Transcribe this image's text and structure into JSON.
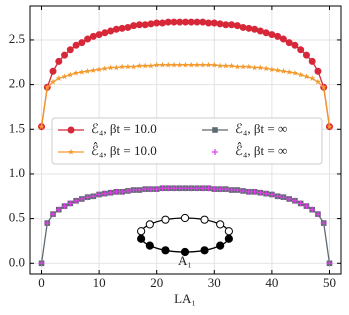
{
  "chart_data": {
    "type": "line",
    "xlabel": "LA₁",
    "annotation": "A₁",
    "x": [
      0,
      1,
      2,
      3,
      4,
      5,
      6,
      7,
      8,
      9,
      10,
      11,
      12,
      13,
      14,
      15,
      16,
      17,
      18,
      19,
      20,
      21,
      22,
      23,
      24,
      25,
      26,
      27,
      28,
      29,
      30,
      31,
      32,
      33,
      34,
      35,
      36,
      37,
      38,
      39,
      40,
      41,
      42,
      43,
      44,
      45,
      46,
      47,
      48,
      49,
      50
    ],
    "series": [
      {
        "name": "ℰ₄, βt = 10.0",
        "color": "#d62839",
        "marker": "circle",
        "line": true,
        "values": [
          1.53,
          1.97,
          2.15,
          2.26,
          2.33,
          2.39,
          2.44,
          2.47,
          2.51,
          2.54,
          2.56,
          2.58,
          2.6,
          2.62,
          2.63,
          2.64,
          2.66,
          2.67,
          2.67,
          2.68,
          2.69,
          2.69,
          2.7,
          2.7,
          2.7,
          2.7,
          2.7,
          2.7,
          2.7,
          2.69,
          2.69,
          2.68,
          2.67,
          2.67,
          2.66,
          2.64,
          2.63,
          2.62,
          2.6,
          2.58,
          2.56,
          2.54,
          2.51,
          2.47,
          2.44,
          2.39,
          2.33,
          2.26,
          2.15,
          1.97,
          1.53
        ]
      },
      {
        "name": "ℰ̂₄, βt = 10.0",
        "color": "#f39a2e",
        "marker": "star",
        "line": true,
        "values": [
          1.53,
          1.97,
          2.03,
          2.07,
          2.09,
          2.11,
          2.13,
          2.14,
          2.15,
          2.16,
          2.17,
          2.18,
          2.19,
          2.19,
          2.2,
          2.2,
          2.2,
          2.21,
          2.21,
          2.21,
          2.22,
          2.22,
          2.22,
          2.22,
          2.22,
          2.22,
          2.22,
          2.22,
          2.22,
          2.22,
          2.22,
          2.21,
          2.21,
          2.21,
          2.2,
          2.2,
          2.2,
          2.19,
          2.19,
          2.18,
          2.17,
          2.16,
          2.15,
          2.14,
          2.13,
          2.11,
          2.09,
          2.07,
          2.03,
          1.97,
          1.53
        ]
      },
      {
        "name": "ℰ₄, βt = ∞",
        "color": "#5d6a72",
        "marker": "square",
        "line": true,
        "values": [
          0,
          0.45,
          0.55,
          0.6,
          0.64,
          0.67,
          0.7,
          0.72,
          0.74,
          0.75,
          0.77,
          0.78,
          0.79,
          0.8,
          0.8,
          0.81,
          0.82,
          0.82,
          0.83,
          0.83,
          0.83,
          0.84,
          0.84,
          0.84,
          0.84,
          0.84,
          0.84,
          0.84,
          0.84,
          0.84,
          0.83,
          0.83,
          0.83,
          0.82,
          0.82,
          0.81,
          0.8,
          0.8,
          0.79,
          0.78,
          0.77,
          0.75,
          0.74,
          0.72,
          0.7,
          0.67,
          0.64,
          0.6,
          0.55,
          0.45,
          0
        ]
      },
      {
        "name": "ℰ̂₄, βt = ∞",
        "color": "#e040e8",
        "marker": "plus",
        "line": false,
        "values": [
          0,
          0.45,
          0.55,
          0.6,
          0.64,
          0.67,
          0.7,
          0.72,
          0.74,
          0.75,
          0.77,
          0.78,
          0.79,
          0.8,
          0.8,
          0.81,
          0.82,
          0.82,
          0.83,
          0.83,
          0.83,
          0.84,
          0.84,
          0.84,
          0.84,
          0.84,
          0.84,
          0.84,
          0.84,
          0.84,
          0.83,
          0.83,
          0.83,
          0.82,
          0.82,
          0.81,
          0.8,
          0.8,
          0.79,
          0.78,
          0.77,
          0.75,
          0.74,
          0.72,
          0.7,
          0.67,
          0.64,
          0.6,
          0.55,
          0.45,
          0
        ]
      }
    ],
    "xlim": [
      -2,
      52
    ],
    "xticks": [
      0,
      10,
      20,
      30,
      40,
      50
    ],
    "ylim": [
      -0.12,
      2.88
    ],
    "yticks": [
      {
        "value": 0,
        "label": "0.0"
      },
      {
        "value": 0.5,
        "label": "0.5"
      },
      {
        "value": 1,
        "label": "1.0"
      },
      {
        "value": 1.5,
        "label": "1.5"
      },
      {
        "value": 2,
        "label": "2.0"
      },
      {
        "value": 2.5,
        "label": "2.5"
      }
    ],
    "grid": true,
    "legend": "center"
  }
}
